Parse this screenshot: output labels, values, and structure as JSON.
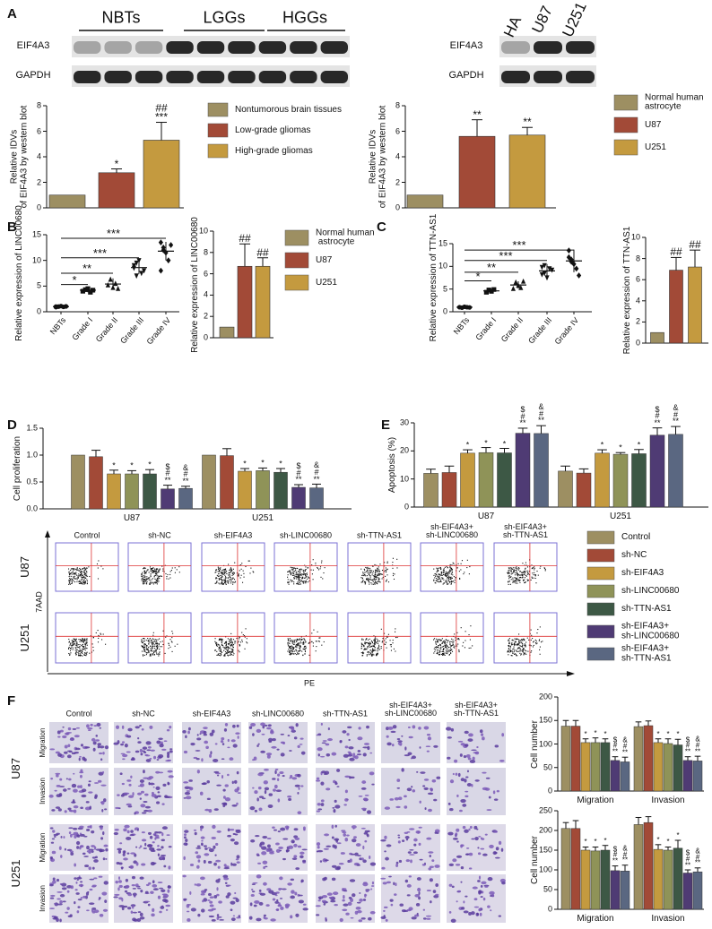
{
  "panel_letters": [
    "A",
    "B",
    "C",
    "D",
    "E",
    "F"
  ],
  "blots": [
    {
      "groups": [
        "NBTs",
        "LGGs",
        "HGGs"
      ],
      "rows": [
        "EIF4A3",
        "GAPDH"
      ]
    },
    {
      "groups": [
        "HA",
        "U87",
        "U251"
      ],
      "rows": [
        "EIF4A3",
        "GAPDH"
      ]
    }
  ],
  "flow": {
    "columns": [
      "Control",
      "sh-NC",
      "sh-EIF4A3",
      "sh-LINC00680",
      "sh-TTN-AS1",
      "sh-EIF4A3+\nsh-LINC00680",
      "sh-EIF4A3+\nsh-TTN-AS1"
    ],
    "rows": [
      "U87",
      "U251"
    ],
    "y_label": "7AAD",
    "x_label": "PE"
  },
  "transwell": {
    "columns": [
      "Control",
      "sh-NC",
      "sh-EIF4A3",
      "sh-LINC00680",
      "sh-TTN-AS1",
      "sh-EIF4A3+\nsh-LINC00680",
      "sh-EIF4A3+\nsh-TTN-AS1"
    ],
    "rows": [
      "U87",
      "U251"
    ],
    "subrows": [
      "Migration",
      "Invasion"
    ]
  },
  "chart_data": [
    {
      "type": "bar",
      "y_label": "Relative IDVs\nof EIF4A3 by western blot",
      "ylim": [
        0,
        8
      ],
      "yticks": [
        0,
        2,
        4,
        6,
        8
      ],
      "values": [
        1,
        2.75,
        5.3
      ],
      "errors": [
        null,
        0.3,
        1.4
      ],
      "colors": [
        "#9d8f62",
        "#a24a37",
        "#c49a3f"
      ],
      "annotations": [
        null,
        "*",
        "##\n***"
      ],
      "legend": [
        "Nontumorous brain tissues",
        "Low-grade gliomas",
        "High-grade gliomas"
      ]
    },
    {
      "type": "bar",
      "y_label": "Relative IDVs\nof EIF4A3 by western blot",
      "ylim": [
        0,
        8
      ],
      "yticks": [
        0,
        2,
        4,
        6,
        8
      ],
      "values": [
        1,
        5.6,
        5.7
      ],
      "errors": [
        null,
        1.3,
        0.6
      ],
      "colors": [
        "#9d8f62",
        "#a24a37",
        "#c49a3f"
      ],
      "annotations": [
        null,
        "**",
        "**"
      ],
      "legend": [
        "Normal human\nastrocyte",
        "U87",
        "U251"
      ]
    },
    {
      "type": "dot",
      "y_label": "Relative expression of LINC00680",
      "ylim": [
        0,
        15
      ],
      "yticks": [
        0,
        5,
        10,
        15
      ],
      "categories": [
        "NBTs",
        "Grade I",
        "Grade II",
        "Grade III",
        "Grade IV"
      ],
      "points": [
        [
          0.9,
          1,
          1.1,
          0.95,
          1.05,
          1
        ],
        [
          4,
          4.3,
          4.5,
          3.8,
          4.2
        ],
        [
          5.2,
          6.3,
          4.7,
          5.5,
          4.5
        ],
        [
          8.5,
          9.5,
          10,
          7.5,
          8,
          9,
          7
        ],
        [
          13.5,
          12,
          11.5,
          10,
          13,
          8,
          12.5
        ]
      ],
      "means": [
        1,
        4.2,
        5.4,
        8.6,
        11.8
      ],
      "sds": [
        0.1,
        0.4,
        1.1,
        1.2,
        1.8
      ],
      "brackets": [
        null,
        {
          "y": 5.3,
          "label": "*"
        },
        {
          "y": 7.5,
          "label": "**"
        },
        {
          "y": 10.5,
          "label": "***"
        },
        {
          "y": 14.3,
          "label": "***"
        }
      ]
    },
    {
      "type": "bar",
      "y_label": "Relative expression of LINC00680",
      "ylim": [
        0,
        10
      ],
      "yticks": [
        0,
        2,
        4,
        6,
        8,
        10
      ],
      "values": [
        1,
        6.7,
        6.7
      ],
      "errors": [
        null,
        2.1,
        0.8
      ],
      "colors": [
        "#9d8f62",
        "#a24a37",
        "#c49a3f"
      ],
      "annotations": [
        null,
        "##",
        "##"
      ],
      "legend": [
        "Normal human\n astrocyte",
        "U87",
        "U251"
      ]
    },
    {
      "type": "dot",
      "y_label": "Relative expression of TTN-AS1",
      "ylim": [
        0,
        15
      ],
      "yticks": [
        0,
        5,
        10,
        15
      ],
      "categories": [
        "NBTs",
        "Grade I",
        "Grade II",
        "Grade III",
        "Grade IV"
      ],
      "points": [
        [
          1,
          0.9,
          1.1,
          1,
          0.95
        ],
        [
          4.3,
          4.8,
          4.5,
          4.9
        ],
        [
          5.1,
          6.5,
          5.8,
          5.3,
          6.7
        ],
        [
          9.8,
          8.5,
          7.5,
          9.5,
          9.2,
          8.2,
          10.2
        ],
        [
          13.5,
          11.5,
          10.5,
          9.5,
          8,
          12,
          11
        ]
      ],
      "means": [
        1,
        4.6,
        5.9,
        9,
        11.2
      ],
      "sds": [
        0.1,
        0.3,
        0.8,
        1.5,
        2.5
      ],
      "brackets": [
        null,
        {
          "y": 6.8,
          "label": "*"
        },
        {
          "y": 8.7,
          "label": "**"
        },
        {
          "y": 11.3,
          "label": "***"
        },
        {
          "y": 13.6,
          "label": "***"
        }
      ]
    },
    {
      "type": "bar",
      "y_label": "Relative expression of TTN-AS1",
      "ylim": [
        0,
        10
      ],
      "yticks": [
        0,
        2,
        4,
        6,
        8,
        10
      ],
      "values": [
        1,
        6.9,
        7.2
      ],
      "errors": [
        null,
        1.2,
        1.6
      ],
      "colors": [
        "#9d8f62",
        "#a24a37",
        "#c49a3f"
      ],
      "annotations": [
        null,
        "##",
        "##"
      ]
    },
    {
      "type": "grouped_bar",
      "y_label": "Cell proliferation",
      "ylim": [
        0,
        1.5
      ],
      "yticks": [
        {
          "value": 0,
          "label": "0.0"
        },
        0.5,
        {
          "value": 1,
          "label": "1.0"
        },
        1.5
      ],
      "groups": [
        "U87",
        "U251"
      ],
      "legend": true,
      "series": [
        {
          "name": "Control",
          "color": "#9d8f62",
          "values": [
            1.0,
            1.0
          ],
          "errors": [
            null,
            null
          ],
          "annotations": [
            null,
            null
          ]
        },
        {
          "name": "sh-NC",
          "color": "#a24a37",
          "values": [
            0.97,
            0.99
          ],
          "errors": [
            0.12,
            0.13
          ],
          "annotations": [
            null,
            null
          ]
        },
        {
          "name": "sh-EIF4A3",
          "color": "#c49a3f",
          "values": [
            0.65,
            0.7
          ],
          "errors": [
            0.07,
            0.05
          ],
          "annotations": [
            "*",
            "*"
          ]
        },
        {
          "name": "sh-LINC00680",
          "color": "#8f9358",
          "values": [
            0.65,
            0.71
          ],
          "errors": [
            0.06,
            0.05
          ],
          "annotations": [
            "*",
            "*"
          ]
        },
        {
          "name": "sh-TTN-AS1",
          "color": "#3d5845",
          "values": [
            0.65,
            0.68
          ],
          "errors": [
            0.08,
            0.07
          ],
          "annotations": [
            "*",
            "*"
          ]
        },
        {
          "name": "sh-EIF4A3+\nsh-LINC00680",
          "color": "#4f3b74",
          "values": [
            0.37,
            0.4
          ],
          "errors": [
            0.07,
            0.05
          ],
          "annotations": [
            "$\n#\n**",
            "$\n#\n**"
          ]
        },
        {
          "name": "sh-EIF4A3+\nsh-TTN-AS1",
          "color": "#5a6781",
          "values": [
            0.38,
            0.39
          ],
          "errors": [
            0.04,
            0.07
          ],
          "annotations": [
            "&\n#\n**",
            "&\n#\n**"
          ]
        }
      ]
    },
    {
      "type": "grouped_bar",
      "y_label": "Apoptosis (%)",
      "ylim": [
        0,
        30
      ],
      "yticks": [
        0,
        10,
        20,
        30
      ],
      "groups": [
        "U87",
        "U251"
      ],
      "series": [
        {
          "color": "#9d8f62",
          "values": [
            12,
            12.8
          ],
          "errors": [
            1.5,
            1.8
          ],
          "annotations": [
            null,
            null
          ]
        },
        {
          "color": "#a24a37",
          "values": [
            12.3,
            12.1
          ],
          "errors": [
            2.3,
            1.5
          ],
          "annotations": [
            null,
            null
          ]
        },
        {
          "color": "#c49a3f",
          "values": [
            19.2,
            19.2
          ],
          "errors": [
            1.2,
            1.2
          ],
          "annotations": [
            "*",
            "*"
          ]
        },
        {
          "color": "#8f9358",
          "values": [
            19.4,
            18.8
          ],
          "errors": [
            1.8,
            0.6
          ],
          "annotations": [
            "*",
            "*"
          ]
        },
        {
          "color": "#3d5845",
          "values": [
            19.3,
            19
          ],
          "errors": [
            1.6,
            1.5
          ],
          "annotations": [
            "*",
            "*"
          ]
        },
        {
          "color": "#4f3b74",
          "values": [
            26.3,
            25.6
          ],
          "errors": [
            1.8,
            2.6
          ],
          "annotations": [
            "$\n#\n**",
            "$\n#\n**"
          ]
        },
        {
          "color": "#5a6781",
          "values": [
            26.2,
            25.9
          ],
          "errors": [
            2.8,
            2.8
          ],
          "annotations": [
            "&\n#\n**",
            "&\n#\n**"
          ]
        }
      ]
    },
    {
      "type": "grouped_bar",
      "y_label": "Cell number",
      "ylim": [
        0,
        200
      ],
      "yticks": [
        0,
        50,
        100,
        150,
        200
      ],
      "groups": [
        "Migration",
        "Invasion"
      ],
      "series": [
        {
          "color": "#9d8f62",
          "values": [
            138,
            137
          ],
          "errors": [
            12,
            10
          ],
          "annotations": [
            null,
            null
          ]
        },
        {
          "color": "#a24a37",
          "values": [
            138,
            139
          ],
          "errors": [
            12,
            10
          ],
          "annotations": [
            null,
            null
          ]
        },
        {
          "color": "#c49a3f",
          "values": [
            103,
            103
          ],
          "errors": [
            8,
            8
          ],
          "annotations": [
            "*",
            "*"
          ]
        },
        {
          "color": "#8f9358",
          "values": [
            103,
            101
          ],
          "errors": [
            10,
            10
          ],
          "annotations": [
            "*",
            "*"
          ]
        },
        {
          "color": "#3d5845",
          "values": [
            103,
            98
          ],
          "errors": [
            8,
            12
          ],
          "annotations": [
            "*",
            "*"
          ]
        },
        {
          "color": "#4f3b74",
          "values": [
            65,
            65
          ],
          "errors": [
            8,
            8
          ],
          "annotations": [
            "$\n#\n**",
            "$\n#\n**"
          ]
        },
        {
          "color": "#5a6781",
          "values": [
            62,
            64
          ],
          "errors": [
            10,
            10
          ],
          "annotations": [
            "&\n#\n**",
            "&\n#\n**"
          ]
        }
      ]
    },
    {
      "type": "grouped_bar",
      "y_label": "Cell number",
      "ylim": [
        0,
        250
      ],
      "yticks": [
        0,
        50,
        100,
        150,
        200,
        250
      ],
      "groups": [
        "Migration",
        "Invasion"
      ],
      "series": [
        {
          "color": "#9d8f62",
          "values": [
            205,
            215
          ],
          "errors": [
            15,
            18
          ],
          "annotations": [
            null,
            null
          ]
        },
        {
          "color": "#a24a37",
          "values": [
            205,
            220
          ],
          "errors": [
            20,
            15
          ],
          "annotations": [
            null,
            null
          ]
        },
        {
          "color": "#c49a3f",
          "values": [
            150,
            152
          ],
          "errors": [
            8,
            12
          ],
          "annotations": [
            "*",
            "*"
          ]
        },
        {
          "color": "#8f9358",
          "values": [
            148,
            150
          ],
          "errors": [
            10,
            8
          ],
          "annotations": [
            "*",
            "*"
          ]
        },
        {
          "color": "#3d5845",
          "values": [
            150,
            155
          ],
          "errors": [
            12,
            20
          ],
          "annotations": [
            "*",
            "*"
          ]
        },
        {
          "color": "#4f3b74",
          "values": [
            98,
            92
          ],
          "errors": [
            12,
            8
          ],
          "annotations": [
            "$\n#\n**",
            "$\n#\n**"
          ]
        },
        {
          "color": "#5a6781",
          "values": [
            97,
            95
          ],
          "errors": [
            15,
            10
          ],
          "annotations": [
            "&\n#\n**",
            "&\n#\n**"
          ]
        }
      ]
    }
  ]
}
